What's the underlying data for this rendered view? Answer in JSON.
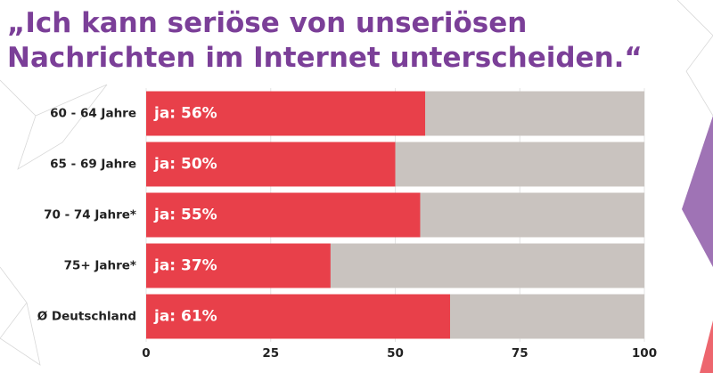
{
  "chart_data": {
    "type": "bar",
    "orientation": "horizontal",
    "title": [
      "„Ich kann seriöse von unseriösen",
      "Nachrichten im Internet unterscheiden.“"
    ],
    "categories": [
      "60 - 64 Jahre",
      "65 - 69 Jahre",
      "70 - 74 Jahre*",
      "75+ Jahre*",
      "Ø Deutschland"
    ],
    "values": [
      56,
      50,
      55,
      37,
      61
    ],
    "value_labels": [
      "ja: 56%",
      "ja: 50%",
      "ja: 55%",
      "ja: 37%",
      "ja: 61%"
    ],
    "color": "#e8404a",
    "track_color": "#c9c3bf",
    "xlim": [
      0,
      100
    ],
    "xticks": [
      0,
      25,
      50,
      75,
      100
    ],
    "grid": true
  }
}
